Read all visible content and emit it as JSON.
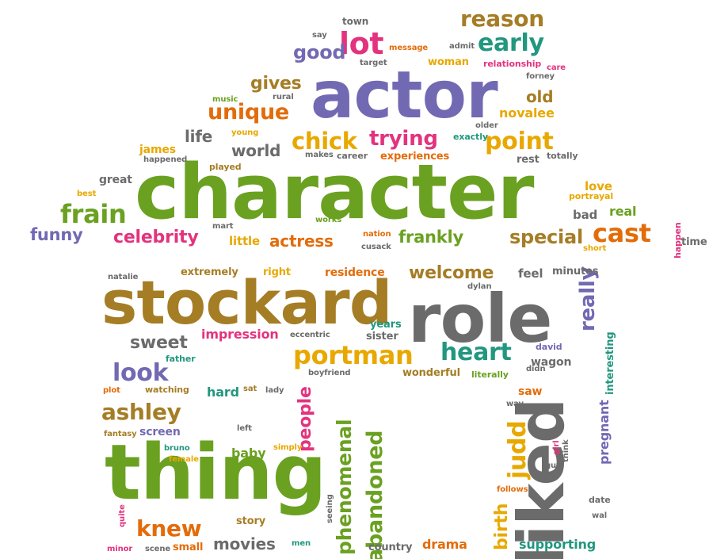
{
  "palette": {
    "green": "#6aa121",
    "purple": "#7269b3",
    "brown": "#a57d25",
    "orange": "#e36c0a",
    "gold": "#e8a800",
    "pink": "#e3337e",
    "teal": "#22977f",
    "gray": "#6b6b6b"
  },
  "words": [
    {
      "text": "character",
      "color": "green"
    },
    {
      "text": "actor",
      "color": "purple"
    },
    {
      "text": "stockard",
      "color": "brown"
    },
    {
      "text": "role",
      "color": "gray"
    },
    {
      "text": "thing",
      "color": "green"
    },
    {
      "text": "liked",
      "color": "gray"
    },
    {
      "text": "reason",
      "color": "brown"
    },
    {
      "text": "lot",
      "color": "pink"
    },
    {
      "text": "good",
      "color": "purple"
    },
    {
      "text": "early",
      "color": "teal"
    },
    {
      "text": "unique",
      "color": "orange"
    },
    {
      "text": "chick",
      "color": "gold"
    },
    {
      "text": "trying",
      "color": "pink"
    },
    {
      "text": "point",
      "color": "gold"
    },
    {
      "text": "frain",
      "color": "green"
    },
    {
      "text": "celebrity",
      "color": "pink"
    },
    {
      "text": "cast",
      "color": "orange"
    },
    {
      "text": "portman",
      "color": "gold"
    },
    {
      "text": "heart",
      "color": "teal"
    },
    {
      "text": "look",
      "color": "purple"
    },
    {
      "text": "ashley",
      "color": "brown"
    },
    {
      "text": "knew",
      "color": "orange"
    },
    {
      "text": "welcome",
      "color": "brown"
    },
    {
      "text": "really",
      "color": "purple"
    },
    {
      "text": "phenomenal",
      "color": "green"
    },
    {
      "text": "abandoned",
      "color": "green"
    },
    {
      "text": "people",
      "color": "pink"
    },
    {
      "text": "judd",
      "color": "gold"
    },
    {
      "text": "birth",
      "color": "gold"
    },
    {
      "text": "gives",
      "color": "brown"
    },
    {
      "text": "life",
      "color": "gray"
    },
    {
      "text": "world",
      "color": "gray"
    },
    {
      "text": "old",
      "color": "brown"
    },
    {
      "text": "novalee",
      "color": "gold"
    },
    {
      "text": "special",
      "color": "brown"
    },
    {
      "text": "frankly",
      "color": "green"
    },
    {
      "text": "actress",
      "color": "orange"
    },
    {
      "text": "funny",
      "color": "purple"
    },
    {
      "text": "sweet",
      "color": "gray"
    },
    {
      "text": "movies",
      "color": "gray"
    },
    {
      "text": "town",
      "color": "gray"
    },
    {
      "text": "say",
      "color": "gray"
    },
    {
      "text": "message",
      "color": "orange"
    },
    {
      "text": "admit",
      "color": "gray"
    },
    {
      "text": "target",
      "color": "gray"
    },
    {
      "text": "woman",
      "color": "gold"
    },
    {
      "text": "relationship",
      "color": "pink"
    },
    {
      "text": "care",
      "color": "pink"
    },
    {
      "text": "forney",
      "color": "gray"
    },
    {
      "text": "music",
      "color": "green"
    },
    {
      "text": "rural",
      "color": "gray"
    },
    {
      "text": "young",
      "color": "gold"
    },
    {
      "text": "james",
      "color": "gold"
    },
    {
      "text": "happened",
      "color": "gray"
    },
    {
      "text": "played",
      "color": "brown"
    },
    {
      "text": "makes",
      "color": "gray"
    },
    {
      "text": "career",
      "color": "gray"
    },
    {
      "text": "experiences",
      "color": "orange"
    },
    {
      "text": "older",
      "color": "gray"
    },
    {
      "text": "exactly",
      "color": "teal"
    },
    {
      "text": "rest",
      "color": "gray"
    },
    {
      "text": "totally",
      "color": "gray"
    },
    {
      "text": "great",
      "color": "gray"
    },
    {
      "text": "best",
      "color": "gold"
    },
    {
      "text": "love",
      "color": "gold"
    },
    {
      "text": "portrayal",
      "color": "gold"
    },
    {
      "text": "bad",
      "color": "gray"
    },
    {
      "text": "real",
      "color": "green"
    },
    {
      "text": "works",
      "color": "green"
    },
    {
      "text": "mart",
      "color": "gray"
    },
    {
      "text": "little",
      "color": "gold"
    },
    {
      "text": "nation",
      "color": "orange"
    },
    {
      "text": "cusack",
      "color": "gray"
    },
    {
      "text": "happen",
      "color": "pink"
    },
    {
      "text": "time",
      "color": "gray"
    },
    {
      "text": "short",
      "color": "gold"
    },
    {
      "text": "natalie",
      "color": "gray"
    },
    {
      "text": "extremely",
      "color": "brown"
    },
    {
      "text": "right",
      "color": "gold"
    },
    {
      "text": "residence",
      "color": "orange"
    },
    {
      "text": "dylan",
      "color": "gray"
    },
    {
      "text": "feel",
      "color": "gray"
    },
    {
      "text": "minutes",
      "color": "gray"
    },
    {
      "text": "impression",
      "color": "pink"
    },
    {
      "text": "eccentric",
      "color": "gray"
    },
    {
      "text": "years",
      "color": "teal"
    },
    {
      "text": "sister",
      "color": "gray"
    },
    {
      "text": "david",
      "color": "purple"
    },
    {
      "text": "interesting",
      "color": "teal"
    },
    {
      "text": "father",
      "color": "teal"
    },
    {
      "text": "boyfriend",
      "color": "gray"
    },
    {
      "text": "wonderful",
      "color": "brown"
    },
    {
      "text": "literally",
      "color": "green"
    },
    {
      "text": "wagon",
      "color": "gray"
    },
    {
      "text": "didn",
      "color": "gray"
    },
    {
      "text": "plot",
      "color": "orange"
    },
    {
      "text": "watching",
      "color": "brown"
    },
    {
      "text": "hard",
      "color": "teal"
    },
    {
      "text": "sat",
      "color": "brown"
    },
    {
      "text": "lady",
      "color": "gray"
    },
    {
      "text": "saw",
      "color": "orange"
    },
    {
      "text": "way",
      "color": "gray"
    },
    {
      "text": "pregnant",
      "color": "purple"
    },
    {
      "text": "fantasy",
      "color": "brown"
    },
    {
      "text": "screen",
      "color": "purple"
    },
    {
      "text": "left",
      "color": "gray"
    },
    {
      "text": "bruno",
      "color": "teal"
    },
    {
      "text": "female",
      "color": "gold"
    },
    {
      "text": "baby",
      "color": "green"
    },
    {
      "text": "simply",
      "color": "gold"
    },
    {
      "text": "seeing",
      "color": "gray"
    },
    {
      "text": "think",
      "color": "gray"
    },
    {
      "text": "girl",
      "color": "pink"
    },
    {
      "text": "guy",
      "color": "gray"
    },
    {
      "text": "follows",
      "color": "orange"
    },
    {
      "text": "date",
      "color": "gray"
    },
    {
      "text": "wal",
      "color": "gray"
    },
    {
      "text": "story",
      "color": "brown"
    },
    {
      "text": "quite",
      "color": "pink"
    },
    {
      "text": "minor",
      "color": "pink"
    },
    {
      "text": "scene",
      "color": "gray"
    },
    {
      "text": "small",
      "color": "orange"
    },
    {
      "text": "men",
      "color": "teal"
    },
    {
      "text": "country",
      "color": "gray"
    },
    {
      "text": "drama",
      "color": "orange"
    },
    {
      "text": "supporting",
      "color": "teal"
    }
  ]
}
